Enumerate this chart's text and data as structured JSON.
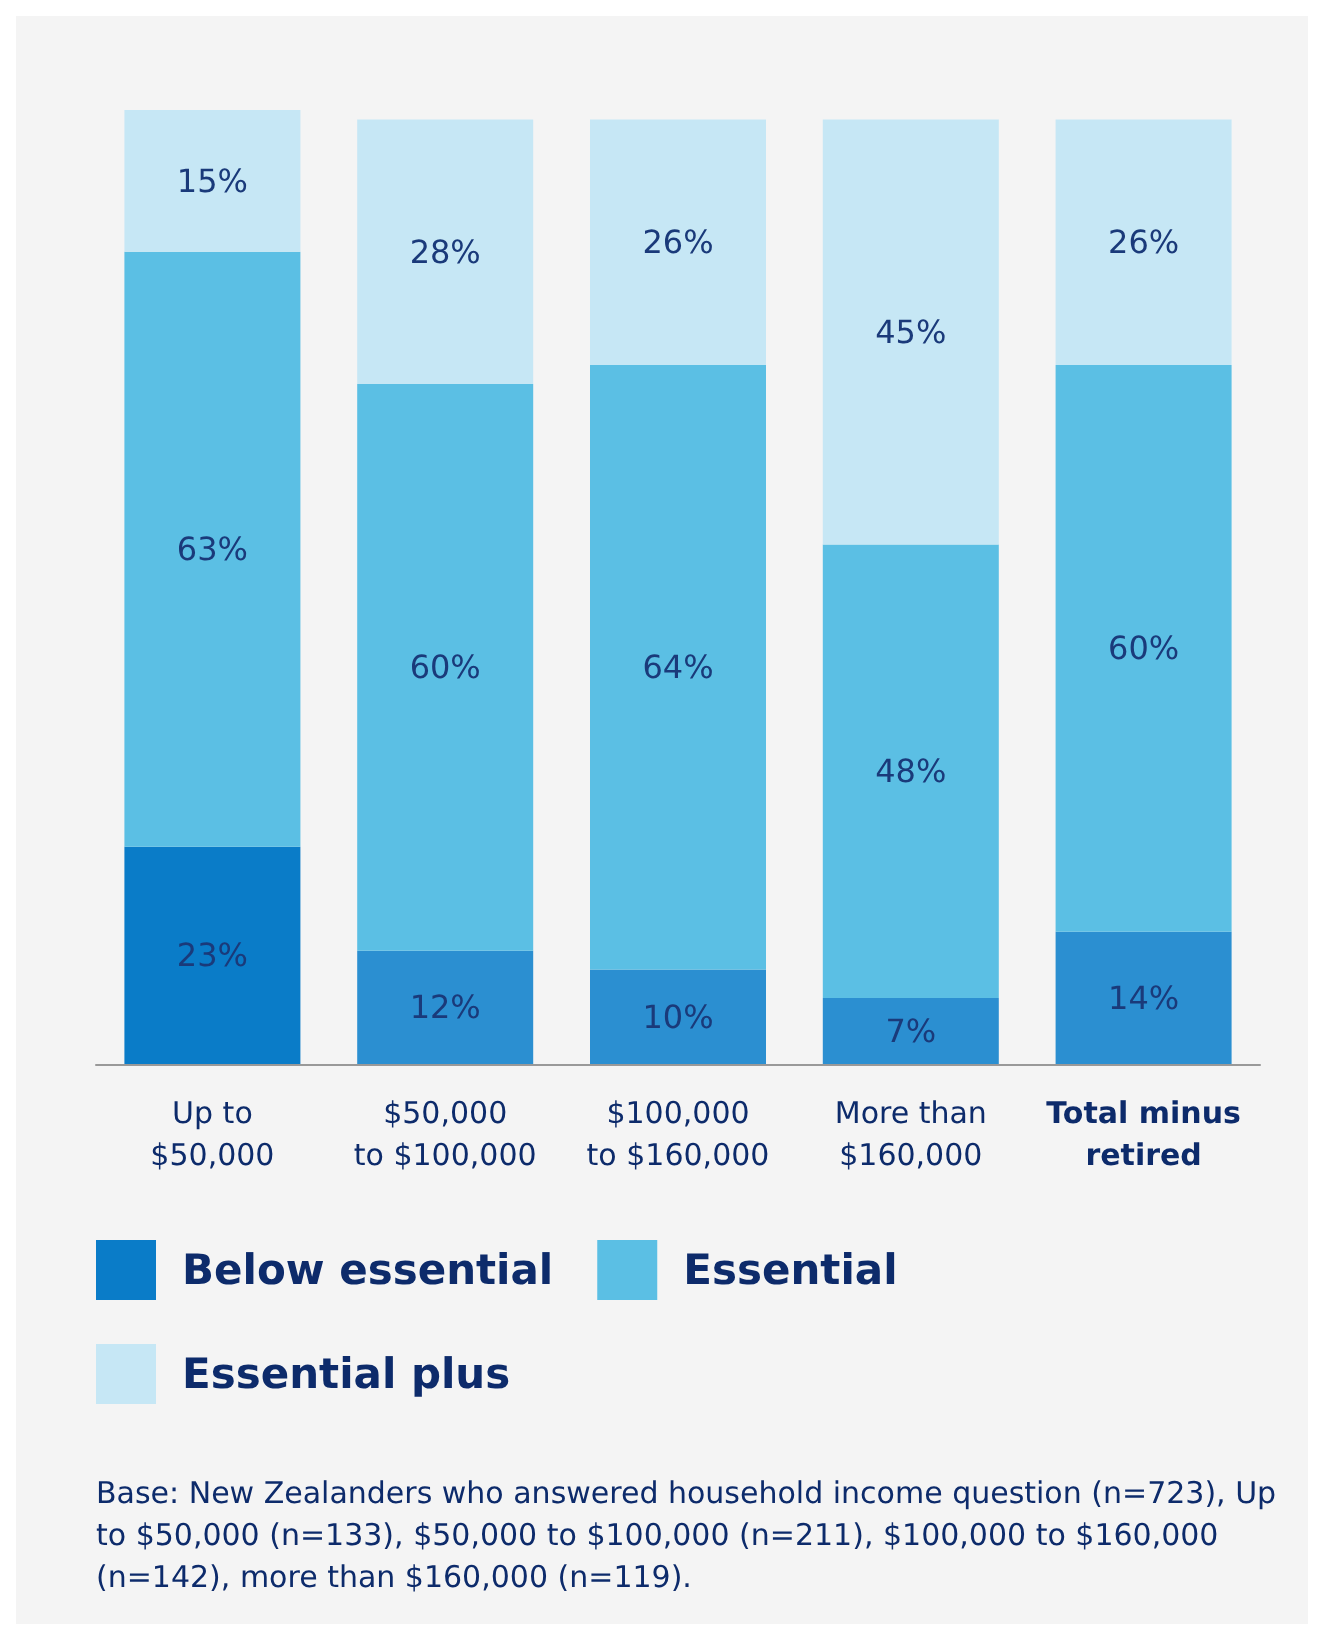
{
  "chart_data": {
    "type": "bar",
    "stacked": true,
    "legend": "bottom",
    "grid": false,
    "categories": [
      "Up to\n$50,000",
      "$50,000\nto $100,000",
      "$100,000\nto $160,000",
      "More than\n$160,000",
      "Total minus\nretired"
    ],
    "series": [
      {
        "name": "Below essential",
        "color": "#0a7cc8",
        "colors": [
          "#0a7cc8",
          "#2b8fd1",
          "#2b8fd1",
          "#2b8fd1",
          "#2b8fd1"
        ],
        "values": [
          23,
          12,
          10,
          7,
          14
        ],
        "value_labels": [
          "23%",
          "12%",
          "10%",
          "7%",
          "14%"
        ]
      },
      {
        "name": "Essential",
        "color": "#5bbfe4",
        "values": [
          63,
          60,
          64,
          48,
          60
        ],
        "value_labels": [
          "63%",
          "60%",
          "64%",
          "48%",
          "60%"
        ]
      },
      {
        "name": "Essential plus",
        "color": "#c6e7f5",
        "values": [
          15,
          28,
          26,
          45,
          26
        ],
        "value_labels": [
          "15%",
          "28%",
          "26%",
          "45%",
          "26%"
        ]
      }
    ],
    "annotations": [
      "Base: New Zealanders who answered household income question (n=723), Up to $50,000 (n=133), $50,000 to $100,000 (n=211), $100,000 to $160,000 (n=142), more than $160,000 (n=119)."
    ]
  }
}
